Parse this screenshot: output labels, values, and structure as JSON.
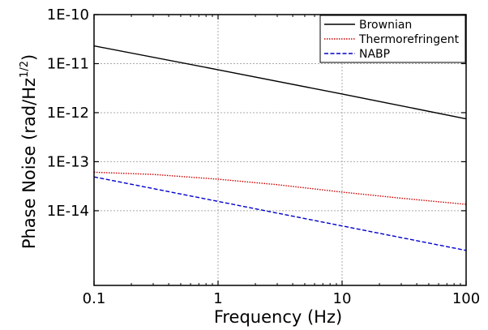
{
  "chart_data": {
    "type": "line",
    "xlabel": "Frequency (Hz)",
    "ylabel_main": "Phase Noise (rad/Hz",
    "ylabel_sup": "1/2",
    "ylabel_close": ")",
    "x_scale": "log",
    "y_scale": "log",
    "xlim": [
      0.1,
      100
    ],
    "ylim": [
      3e-16,
      1e-10
    ],
    "xticks": [
      {
        "value": 0.1,
        "label": "0.1"
      },
      {
        "value": 1,
        "label": "1"
      },
      {
        "value": 10,
        "label": "10"
      },
      {
        "value": 100,
        "label": "100"
      }
    ],
    "yticks": [
      {
        "value": 1e-10,
        "label": "1E-10"
      },
      {
        "value": 1e-11,
        "label": "1E-11"
      },
      {
        "value": 1e-12,
        "label": "1E-12"
      },
      {
        "value": 1e-13,
        "label": "1E-13"
      },
      {
        "value": 1e-14,
        "label": "1E-14"
      }
    ],
    "grid": true,
    "legend_position": "top-right",
    "series": [
      {
        "name": "Brownian",
        "color": "#000000",
        "dash": "solid",
        "x": [
          0.1,
          1,
          10,
          100
        ],
        "y": [
          2.3e-11,
          7.5e-12,
          2.4e-12,
          7.5e-13
        ]
      },
      {
        "name": "Thermorefringent",
        "color": "#cc0000",
        "dash": "dotted",
        "x": [
          0.1,
          0.3,
          1,
          3,
          10,
          30,
          100
        ],
        "y": [
          6.1e-14,
          5.5e-14,
          4.4e-14,
          3.4e-14,
          2.4e-14,
          1.8e-14,
          1.35e-14
        ]
      },
      {
        "name": "NABP",
        "color": "#0000cc",
        "dash": "dashed",
        "x": [
          0.1,
          1,
          10,
          100
        ],
        "y": [
          4.9e-14,
          1.55e-14,
          4.9e-15,
          1.55e-15
        ]
      }
    ]
  }
}
